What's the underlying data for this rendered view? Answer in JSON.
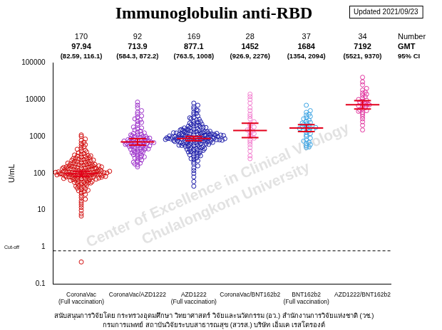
{
  "chart_data": {
    "type": "scatter",
    "title": "Immunoglobulin anti-RBD",
    "annotation": "Updated 2021/09/23",
    "ylabel": "U/mL",
    "log": "y",
    "grid": false,
    "marker": "circle",
    "ylim": [
      0.1,
      100000
    ],
    "yticks": [
      0.1,
      1,
      10,
      100,
      1000,
      10000,
      100000
    ],
    "header_labels": [
      "Number",
      "GMT",
      "95% CI"
    ],
    "categories": [
      [
        "CoronaVac",
        "(Full vaccination)"
      ],
      [
        "CoronaVac/AZD1222"
      ],
      [
        "AZD1222",
        "(Full vaccination)"
      ],
      [
        "CoronaVac/BNT162b2"
      ],
      [
        "BNT162b2",
        "(Full vaccination)"
      ],
      [
        "AZD1222/BNT162b2"
      ]
    ],
    "colors": [
      "#d10a0a",
      "#9b2fc9",
      "#1c1ca8",
      "#f27fcf",
      "#3aa3e3",
      "#e0339e"
    ],
    "n": [
      170,
      92,
      169,
      28,
      37,
      34
    ],
    "gmt": [
      97.94,
      713.9,
      877.1,
      1452,
      1684,
      7192
    ],
    "ci": [
      [
        82.59,
        116.1
      ],
      [
        584.3,
        872.2
      ],
      [
        763.5,
        1008
      ],
      [
        926.9,
        2276
      ],
      [
        1354,
        2094
      ],
      [
        5521,
        9370
      ]
    ],
    "ci_labels": [
      "(82.59, 116.1)",
      "(584.3, 872.2)",
      "(763.5, 1008)",
      "(926.9, 2276)",
      "(1354, 2094)",
      "(5521, 9370)"
    ],
    "cutoff": {
      "value": 0.8,
      "label": "Cut-off"
    },
    "watermark": [
      "Center of Excellence in Clinical Virology",
      "Chulalongkorn University"
    ],
    "footer": [
      "สนับสนุนการวิจัยโดย กระทรวงอุดมศึกษา วิทยาศาสตร์ วิจัยและนวัตกรรม (อว.) สำนักงานการวิจัยแห่งชาติ (วช.)",
      "กรมการแพทย์ สถาบันวิจัยระบบสาธารณสุข (สวรส.) บริษัท เอ็มเค เรสโตรองต์"
    ],
    "values": [
      [
        0.4,
        7,
        8,
        10,
        12,
        14,
        16,
        18,
        20,
        22,
        25,
        27,
        30,
        32,
        34,
        36,
        38,
        40,
        42,
        44,
        46,
        48,
        50,
        52,
        54,
        55,
        57,
        58,
        60,
        62,
        63,
        65,
        66,
        68,
        70,
        71,
        72,
        74,
        75,
        77,
        78,
        80,
        81,
        82,
        84,
        85,
        86,
        88,
        89,
        90,
        92,
        93,
        94,
        95,
        96,
        98,
        99,
        100,
        101,
        102,
        104,
        105,
        106,
        108,
        109,
        110,
        112,
        113,
        115,
        116,
        118,
        120,
        122,
        124,
        126,
        128,
        130,
        132,
        134,
        136,
        138,
        140,
        143,
        146,
        149,
        152,
        155,
        158,
        161,
        164,
        168,
        172,
        176,
        180,
        185,
        190,
        195,
        200,
        205,
        210,
        215,
        220,
        226,
        232,
        238,
        245,
        252,
        260,
        268,
        276,
        285,
        295,
        305,
        315,
        330,
        345,
        360,
        380,
        400,
        420,
        450,
        480,
        520,
        560,
        600,
        650,
        700,
        780,
        850,
        1000,
        60,
        70,
        80,
        85,
        90,
        95,
        100,
        105,
        110,
        120,
        130,
        140,
        150,
        160,
        170,
        180,
        75,
        88,
        97,
        103,
        65,
        73,
        79,
        83,
        91,
        107,
        114,
        125,
        135,
        145,
        35,
        45,
        55,
        150,
        175,
        190,
        230,
        250,
        300,
        1100
      ],
      [
        150,
        170,
        190,
        210,
        230,
        250,
        270,
        290,
        300,
        320,
        340,
        350,
        370,
        390,
        400,
        420,
        440,
        450,
        470,
        490,
        500,
        520,
        540,
        550,
        570,
        590,
        600,
        620,
        640,
        650,
        670,
        690,
        700,
        720,
        740,
        750,
        770,
        790,
        800,
        820,
        850,
        870,
        900,
        930,
        950,
        980,
        1000,
        1050,
        1100,
        1150,
        1200,
        1250,
        1300,
        1400,
        1500,
        1600,
        1700,
        1800,
        2000,
        2200,
        2400,
        2600,
        2800,
        3000,
        3300,
        3600,
        4000,
        4500,
        5000,
        6000,
        7000,
        8500,
        600,
        650,
        700,
        560,
        480,
        380,
        280,
        750,
        820,
        900,
        1000,
        1100,
        680,
        610,
        530,
        460,
        360,
        260,
        200,
        180
      ],
      [
        45,
        60,
        80,
        100,
        120,
        140,
        160,
        180,
        200,
        220,
        240,
        260,
        280,
        300,
        320,
        340,
        360,
        380,
        400,
        420,
        440,
        460,
        480,
        500,
        520,
        540,
        560,
        580,
        600,
        620,
        640,
        660,
        680,
        700,
        720,
        740,
        760,
        780,
        800,
        820,
        840,
        860,
        880,
        900,
        920,
        940,
        960,
        980,
        1000,
        1020,
        1040,
        1060,
        1080,
        1100,
        1130,
        1160,
        1190,
        1220,
        1250,
        1280,
        1320,
        1360,
        1400,
        1450,
        1500,
        1550,
        1600,
        1700,
        1800,
        1900,
        2000,
        2100,
        2200,
        2400,
        2600,
        2800,
        3000,
        3300,
        3600,
        4000,
        4500,
        5000,
        5600,
        6300,
        7000,
        8000,
        850,
        870,
        890,
        910,
        700,
        750,
        800,
        850,
        900,
        950,
        1000,
        1050,
        1100,
        1150,
        500,
        550,
        600,
        650,
        1200,
        1300,
        1400,
        1600,
        1800,
        2000,
        300,
        350,
        400,
        450,
        720,
        780,
        820,
        860,
        930,
        970,
        1010,
        1070,
        1120,
        1180,
        1240,
        1330,
        1450,
        1700,
        2300,
        2900,
        630,
        670,
        710,
        760,
        810,
        880,
        960,
        990,
        1030,
        1090,
        530,
        570,
        610,
        690,
        730,
        790,
        830,
        1140,
        1260,
        1350,
        250,
        420,
        470,
        1500,
        1750,
        2500,
        3200,
        4200,
        5200,
        870,
        920,
        1060,
        1210,
        1380,
        1550,
        1900,
        2150,
        380,
        580
      ],
      [
        250,
        300,
        400,
        500,
        600,
        700,
        800,
        900,
        1000,
        1100,
        1200,
        1300,
        1400,
        1500,
        1600,
        1800,
        2000,
        2200,
        2500,
        3000,
        3500,
        4000,
        5000,
        6000,
        8000,
        10000,
        12000,
        14000
      ],
      [
        500,
        520,
        560,
        600,
        650,
        700,
        750,
        800,
        900,
        1000,
        1100,
        1200,
        1300,
        1400,
        1500,
        1600,
        1700,
        1800,
        1900,
        2000,
        2200,
        2400,
        2600,
        2800,
        3000,
        3200,
        3500,
        3800,
        4000,
        4500,
        1550,
        1650,
        1750,
        2100,
        2300,
        5000,
        7000
      ],
      [
        1500,
        2000,
        2500,
        3000,
        3500,
        4000,
        4500,
        5000,
        5500,
        6000,
        6500,
        7000,
        7500,
        8000,
        8500,
        9000,
        9500,
        10000,
        11000,
        12000,
        13000,
        14000,
        15000,
        16000,
        18000,
        20000,
        25000,
        30000,
        40000,
        6800,
        7200,
        7600,
        5200,
        4800
      ]
    ]
  }
}
